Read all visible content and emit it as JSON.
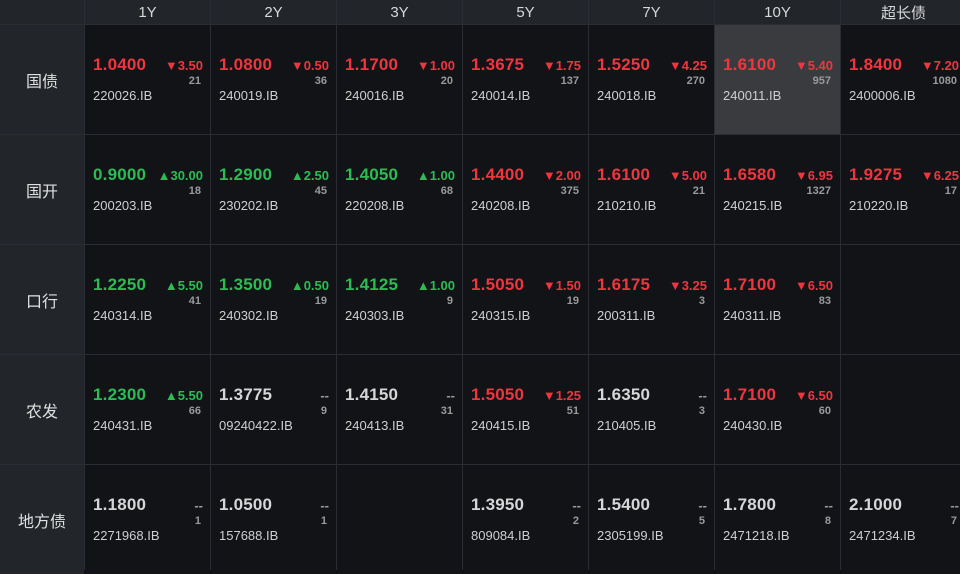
{
  "colors": {
    "up": "#2bbd53",
    "down": "#f0353f",
    "flat": "#d6d6d6"
  },
  "columns": [
    "1Y",
    "2Y",
    "3Y",
    "5Y",
    "7Y",
    "10Y",
    "超长债"
  ],
  "rows": [
    {
      "label": "国债",
      "cells": [
        {
          "price": "1.0400",
          "change": "▼3.50",
          "count": "21",
          "code": "220026.IB",
          "trend": "down"
        },
        {
          "price": "1.0800",
          "change": "▼0.50",
          "count": "36",
          "code": "240019.IB",
          "trend": "down"
        },
        {
          "price": "1.1700",
          "change": "▼1.00",
          "count": "20",
          "code": "240016.IB",
          "trend": "down"
        },
        {
          "price": "1.3675",
          "change": "▼1.75",
          "count": "137",
          "code": "240014.IB",
          "trend": "down"
        },
        {
          "price": "1.5250",
          "change": "▼4.25",
          "count": "270",
          "code": "240018.IB",
          "trend": "down"
        },
        {
          "price": "1.6100",
          "change": "▼5.40",
          "count": "957",
          "code": "240011.IB",
          "trend": "down",
          "selected": true
        },
        {
          "price": "1.8400",
          "change": "▼7.20",
          "count": "1080",
          "code": "2400006.IB",
          "trend": "down"
        }
      ]
    },
    {
      "label": "国开",
      "cells": [
        {
          "price": "0.9000",
          "change": "▲30.00",
          "count": "18",
          "code": "200203.IB",
          "trend": "up"
        },
        {
          "price": "1.2900",
          "change": "▲2.50",
          "count": "45",
          "code": "230202.IB",
          "trend": "up"
        },
        {
          "price": "1.4050",
          "change": "▲1.00",
          "count": "68",
          "code": "220208.IB",
          "trend": "up"
        },
        {
          "price": "1.4400",
          "change": "▼2.00",
          "count": "375",
          "code": "240208.IB",
          "trend": "down"
        },
        {
          "price": "1.6100",
          "change": "▼5.00",
          "count": "21",
          "code": "210210.IB",
          "trend": "down"
        },
        {
          "price": "1.6580",
          "change": "▼6.95",
          "count": "1327",
          "code": "240215.IB",
          "trend": "down"
        },
        {
          "price": "1.9275",
          "change": "▼6.25",
          "count": "17",
          "code": "210220.IB",
          "trend": "down"
        }
      ]
    },
    {
      "label": "口行",
      "cells": [
        {
          "price": "1.2250",
          "change": "▲5.50",
          "count": "41",
          "code": "240314.IB",
          "trend": "up"
        },
        {
          "price": "1.3500",
          "change": "▲0.50",
          "count": "19",
          "code": "240302.IB",
          "trend": "up"
        },
        {
          "price": "1.4125",
          "change": "▲1.00",
          "count": "9",
          "code": "240303.IB",
          "trend": "up"
        },
        {
          "price": "1.5050",
          "change": "▼1.50",
          "count": "19",
          "code": "240315.IB",
          "trend": "down"
        },
        {
          "price": "1.6175",
          "change": "▼3.25",
          "count": "3",
          "code": "200311.IB",
          "trend": "down"
        },
        {
          "price": "1.7100",
          "change": "▼6.50",
          "count": "83",
          "code": "240311.IB",
          "trend": "down"
        },
        null
      ]
    },
    {
      "label": "农发",
      "cells": [
        {
          "price": "1.2300",
          "change": "▲5.50",
          "count": "66",
          "code": "240431.IB",
          "trend": "up"
        },
        {
          "price": "1.3775",
          "change": "--",
          "count": "9",
          "code": "09240422.IB",
          "trend": "flat"
        },
        {
          "price": "1.4150",
          "change": "--",
          "count": "31",
          "code": "240413.IB",
          "trend": "flat"
        },
        {
          "price": "1.5050",
          "change": "▼1.25",
          "count": "51",
          "code": "240415.IB",
          "trend": "down"
        },
        {
          "price": "1.6350",
          "change": "--",
          "count": "3",
          "code": "210405.IB",
          "trend": "flat"
        },
        {
          "price": "1.7100",
          "change": "▼6.50",
          "count": "60",
          "code": "240430.IB",
          "trend": "down"
        },
        null
      ]
    },
    {
      "label": "地方债",
      "cells": [
        {
          "price": "1.1800",
          "change": "--",
          "count": "1",
          "code": "2271968.IB",
          "trend": "flat"
        },
        {
          "price": "1.0500",
          "change": "--",
          "count": "1",
          "code": "157688.IB",
          "trend": "flat"
        },
        null,
        {
          "price": "1.3950",
          "change": "--",
          "count": "2",
          "code": "809084.IB",
          "trend": "flat"
        },
        {
          "price": "1.5400",
          "change": "--",
          "count": "5",
          "code": "2305199.IB",
          "trend": "flat"
        },
        {
          "price": "1.7800",
          "change": "--",
          "count": "8",
          "code": "2471218.IB",
          "trend": "flat"
        },
        {
          "price": "2.1000",
          "change": "--",
          "count": "7",
          "code": "2471234.IB",
          "trend": "flat"
        }
      ]
    }
  ]
}
